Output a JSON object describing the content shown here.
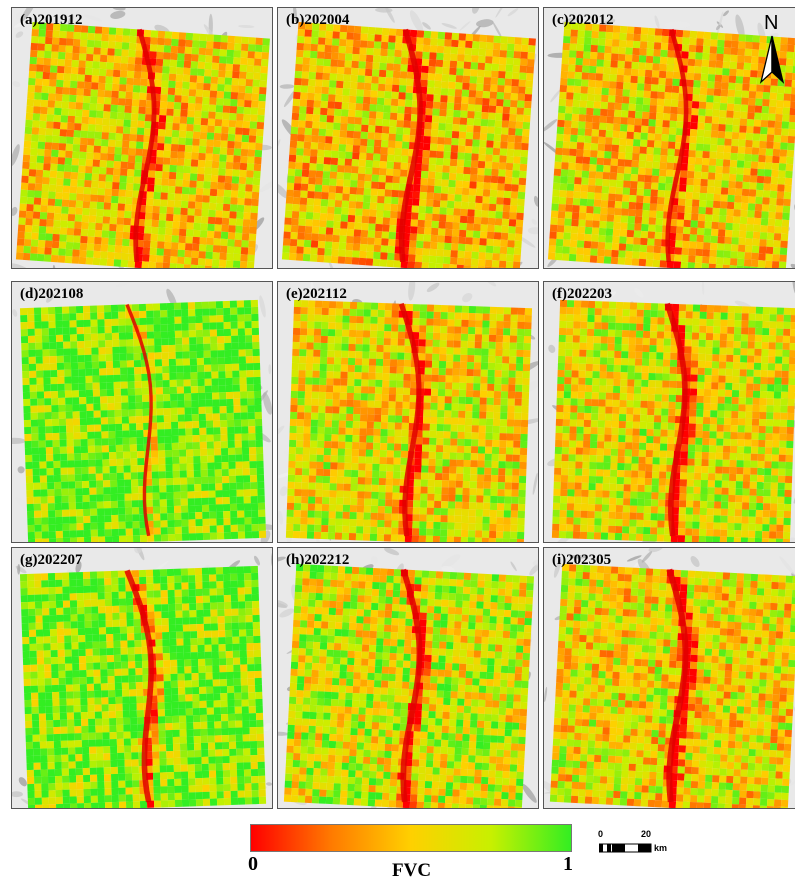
{
  "panels": [
    {
      "label": "(a)201912",
      "green_bias": 0.55,
      "river_strength": 0.7
    },
    {
      "label": "(b)202004",
      "green_bias": 0.5,
      "river_strength": 0.9
    },
    {
      "label": "(c)202012",
      "green_bias": 0.55,
      "river_strength": 0.65
    },
    {
      "label": "(d)202108",
      "green_bias": 0.92,
      "river_strength": 0.35
    },
    {
      "label": "(e)202112",
      "green_bias": 0.6,
      "river_strength": 0.8
    },
    {
      "label": "(f)202203",
      "green_bias": 0.62,
      "river_strength": 0.9
    },
    {
      "label": "(g)202207",
      "green_bias": 0.88,
      "river_strength": 0.9
    },
    {
      "label": "(h)202212",
      "green_bias": 0.68,
      "river_strength": 0.95
    },
    {
      "label": "(i)202305",
      "green_bias": 0.58,
      "river_strength": 1.0
    }
  ],
  "north_arrow": {
    "letter": "N",
    "icon": "north-arrow-icon"
  },
  "legend": {
    "title": "FVC",
    "min_label": "0",
    "max_label": "1",
    "colors": [
      "#ff0000",
      "#ff7a00",
      "#ffd000",
      "#c8f000",
      "#33ee22"
    ]
  },
  "scale_bar": {
    "zero_label": "0",
    "mid_label": "20",
    "unit": "km"
  }
}
